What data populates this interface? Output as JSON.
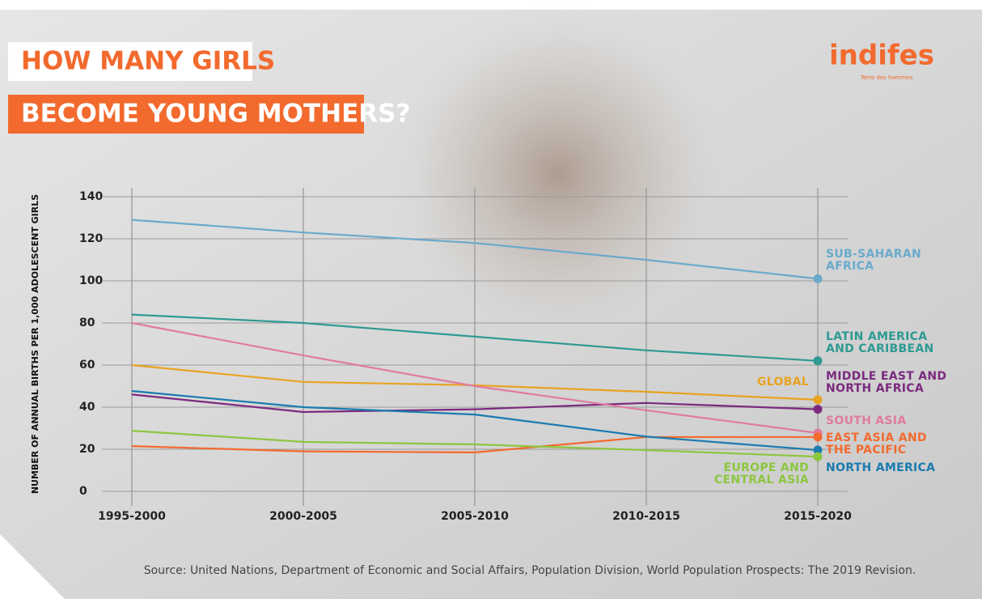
{
  "chart_data": {
    "type": "line",
    "title": "HOW MANY GIRLS",
    "subtitle": "BECOME YOUNG MOTHERS?",
    "logo": "indifes",
    "logo_sub": "Terre des hommes",
    "y_label": "NUMBER OF ANNUAL BIRTHS PER 1,000 ADOLESCENT GIRLS",
    "source": "Source: United Nations, Department of Economic and Social Affairs, Population Division, World Population Prospects: The 2019 Revision.",
    "categories": [
      "1995-2000",
      "2000-2005",
      "2005-2010",
      "2010-2015",
      "2015-2020"
    ],
    "ylim": [
      0,
      140
    ],
    "yticks": [
      0,
      20,
      40,
      60,
      80,
      100,
      120,
      140
    ],
    "grid": true,
    "series": [
      {
        "name": "SUB-SAHARAN AFRICA",
        "color": "#6aaacb",
        "values": [
          129,
          123,
          118,
          110,
          101
        ]
      },
      {
        "name": "LATIN AMERICA AND CARIBBEAN",
        "color": "#2e9a92",
        "values": [
          84,
          80,
          73.5,
          67,
          62
        ]
      },
      {
        "name": "MIDDLE EAST AND NORTH AFRICA",
        "color": "#7b2a7e",
        "values": [
          46,
          37.7,
          39,
          42,
          39
        ]
      },
      {
        "name": "GLOBAL",
        "color": "#e8a320",
        "values": [
          60,
          52,
          50.4,
          47.3,
          43.5
        ]
      },
      {
        "name": "SOUTH ASIA",
        "color": "#e07ba0",
        "values": [
          80,
          64.6,
          50,
          38.5,
          27.7
        ]
      },
      {
        "name": "EAST ASIA AND THE PACIFIC",
        "color": "#f26a2e",
        "values": [
          21.5,
          19,
          18.5,
          25.8,
          25.8
        ]
      },
      {
        "name": "NORTH AMERICA",
        "color": "#1a7bb0",
        "values": [
          47.7,
          40,
          36.5,
          26,
          19.6
        ]
      },
      {
        "name": "EUROPE AND CENTRAL ASIA",
        "color": "#8dc63f",
        "values": [
          28.8,
          23.5,
          22.3,
          19.6,
          16.5
        ]
      }
    ]
  }
}
